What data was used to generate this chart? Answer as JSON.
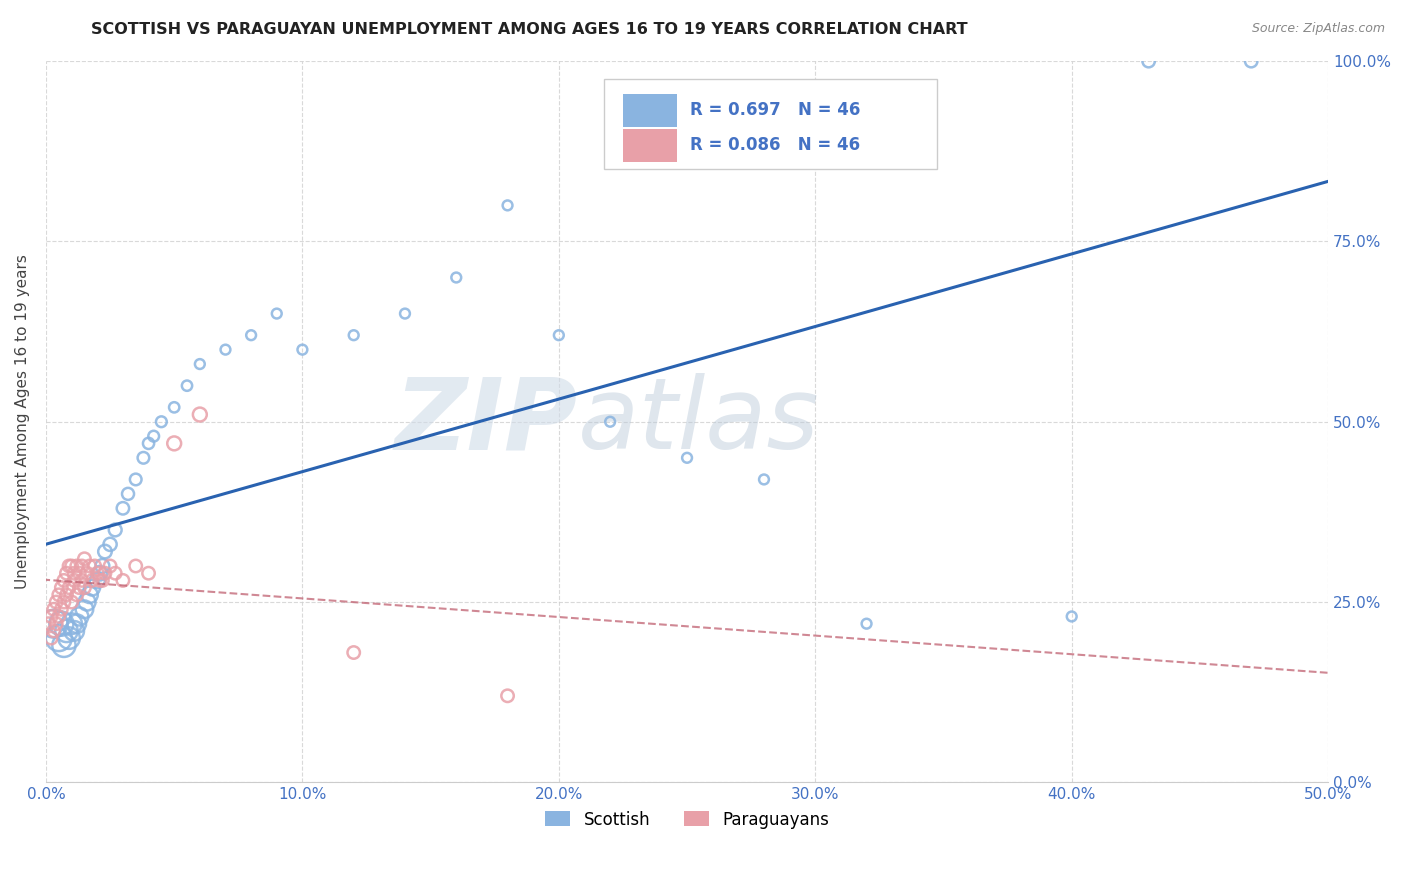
{
  "title": "SCOTTISH VS PARAGUAYAN UNEMPLOYMENT AMONG AGES 16 TO 19 YEARS CORRELATION CHART",
  "source": "Source: ZipAtlas.com",
  "ylabel": "Unemployment Among Ages 16 to 19 years",
  "xlim": [
    0.0,
    0.5
  ],
  "ylim": [
    0.0,
    1.0
  ],
  "watermark_zip": "ZIP",
  "watermark_atlas": "atlas",
  "legend_r_scottish": "R = 0.697",
  "legend_n_scottish": "N = 46",
  "legend_r_paraguayan": "R = 0.086",
  "legend_n_paraguayan": "N = 46",
  "scottish_color": "#8ab4e0",
  "paraguayan_color": "#e8a0a8",
  "trend_scottish_color": "#2962b0",
  "trend_paraguayan_color": "#c06070",
  "sc_x": [
    0.003,
    0.005,
    0.006,
    0.007,
    0.008,
    0.009,
    0.01,
    0.011,
    0.012,
    0.013,
    0.015,
    0.016,
    0.017,
    0.018,
    0.02,
    0.021,
    0.022,
    0.023,
    0.025,
    0.027,
    0.03,
    0.032,
    0.035,
    0.038,
    0.04,
    0.042,
    0.045,
    0.05,
    0.055,
    0.06,
    0.07,
    0.08,
    0.09,
    0.1,
    0.12,
    0.14,
    0.16,
    0.18,
    0.2,
    0.22,
    0.25,
    0.28,
    0.32,
    0.4,
    0.43,
    0.47
  ],
  "sc_y": [
    0.22,
    0.2,
    0.22,
    0.19,
    0.21,
    0.2,
    0.22,
    0.21,
    0.22,
    0.23,
    0.24,
    0.25,
    0.26,
    0.27,
    0.28,
    0.29,
    0.3,
    0.32,
    0.33,
    0.35,
    0.38,
    0.4,
    0.42,
    0.45,
    0.47,
    0.48,
    0.5,
    0.52,
    0.55,
    0.58,
    0.6,
    0.62,
    0.65,
    0.6,
    0.62,
    0.65,
    0.7,
    0.8,
    0.62,
    0.5,
    0.45,
    0.42,
    0.22,
    0.23,
    1.0,
    1.0
  ],
  "sc_sizes": [
    400,
    350,
    300,
    280,
    260,
    240,
    220,
    200,
    180,
    170,
    160,
    150,
    140,
    130,
    120,
    110,
    100,
    95,
    90,
    85,
    80,
    75,
    70,
    70,
    65,
    60,
    60,
    55,
    55,
    50,
    50,
    50,
    50,
    50,
    50,
    50,
    50,
    50,
    50,
    50,
    50,
    50,
    50,
    50,
    80,
    80
  ],
  "pa_x": [
    0.001,
    0.002,
    0.002,
    0.003,
    0.003,
    0.004,
    0.004,
    0.005,
    0.005,
    0.006,
    0.006,
    0.007,
    0.007,
    0.008,
    0.008,
    0.009,
    0.009,
    0.01,
    0.01,
    0.011,
    0.011,
    0.012,
    0.012,
    0.013,
    0.013,
    0.014,
    0.014,
    0.015,
    0.015,
    0.016,
    0.017,
    0.018,
    0.019,
    0.02,
    0.021,
    0.022,
    0.023,
    0.025,
    0.027,
    0.03,
    0.035,
    0.04,
    0.05,
    0.06,
    0.12,
    0.18
  ],
  "pa_y": [
    0.22,
    0.23,
    0.2,
    0.24,
    0.21,
    0.25,
    0.22,
    0.26,
    0.23,
    0.27,
    0.24,
    0.28,
    0.25,
    0.29,
    0.26,
    0.3,
    0.27,
    0.3,
    0.25,
    0.28,
    0.29,
    0.26,
    0.3,
    0.27,
    0.29,
    0.3,
    0.28,
    0.31,
    0.27,
    0.29,
    0.3,
    0.28,
    0.3,
    0.29,
    0.28,
    0.28,
    0.29,
    0.3,
    0.29,
    0.28,
    0.3,
    0.29,
    0.47,
    0.51,
    0.18,
    0.12
  ],
  "pa_sizes": [
    80,
    80,
    80,
    80,
    80,
    80,
    80,
    80,
    80,
    80,
    80,
    80,
    80,
    80,
    80,
    80,
    80,
    80,
    80,
    80,
    80,
    80,
    80,
    80,
    80,
    80,
    80,
    80,
    80,
    80,
    80,
    80,
    80,
    80,
    80,
    80,
    80,
    80,
    80,
    80,
    80,
    80,
    100,
    100,
    80,
    80
  ]
}
